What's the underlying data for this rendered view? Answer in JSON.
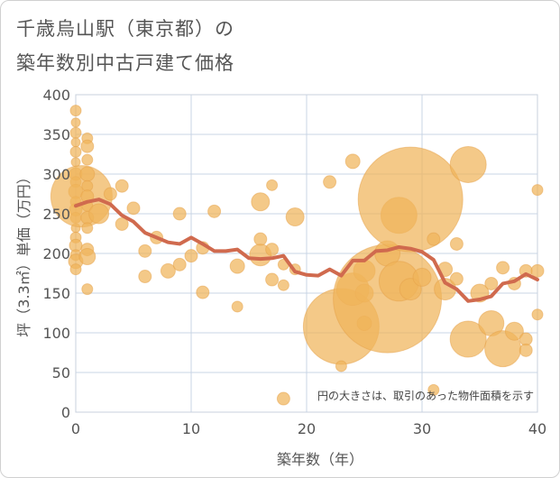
{
  "chart_data": {
    "type": "scatter",
    "title_lines": [
      "千歳烏山駅（東京都）の",
      "築年数別中古戸建て価格"
    ],
    "xlabel": "築年数（年）",
    "ylabel": "坪（3.3㎡）単価（万円）",
    "xlim": [
      0,
      40
    ],
    "ylim": [
      0,
      400
    ],
    "x_ticks": [
      0,
      10,
      20,
      30,
      40
    ],
    "y_ticks": [
      0,
      50,
      100,
      150,
      200,
      250,
      300,
      350,
      400
    ],
    "grid": true,
    "note": "円の大きさは、取引のあった物件面積を示す",
    "bubble_color": "#f0b45a",
    "line_color": "#d06a4e",
    "bubbles": [
      {
        "x": 0,
        "y": 380,
        "r": 6
      },
      {
        "x": 0,
        "y": 365,
        "r": 5
      },
      {
        "x": 0,
        "y": 352,
        "r": 6
      },
      {
        "x": 0,
        "y": 340,
        "r": 5
      },
      {
        "x": 0,
        "y": 328,
        "r": 6
      },
      {
        "x": 0,
        "y": 315,
        "r": 5
      },
      {
        "x": 0,
        "y": 300,
        "r": 7
      },
      {
        "x": 0,
        "y": 290,
        "r": 6
      },
      {
        "x": 0,
        "y": 278,
        "r": 8
      },
      {
        "x": 0,
        "y": 265,
        "r": 6
      },
      {
        "x": 0,
        "y": 255,
        "r": 7
      },
      {
        "x": 0,
        "y": 245,
        "r": 6
      },
      {
        "x": 0,
        "y": 232,
        "r": 5
      },
      {
        "x": 0,
        "y": 220,
        "r": 6
      },
      {
        "x": 0,
        "y": 210,
        "r": 7
      },
      {
        "x": 0,
        "y": 198,
        "r": 6
      },
      {
        "x": 0,
        "y": 190,
        "r": 8
      },
      {
        "x": 0,
        "y": 180,
        "r": 6
      },
      {
        "x": 0.5,
        "y": 272,
        "r": 34
      },
      {
        "x": 1,
        "y": 345,
        "r": 6
      },
      {
        "x": 1,
        "y": 335,
        "r": 7
      },
      {
        "x": 1,
        "y": 318,
        "r": 6
      },
      {
        "x": 1,
        "y": 300,
        "r": 8
      },
      {
        "x": 1,
        "y": 285,
        "r": 6
      },
      {
        "x": 1,
        "y": 272,
        "r": 7
      },
      {
        "x": 1,
        "y": 260,
        "r": 6
      },
      {
        "x": 1,
        "y": 245,
        "r": 7
      },
      {
        "x": 1,
        "y": 232,
        "r": 6
      },
      {
        "x": 1,
        "y": 205,
        "r": 7
      },
      {
        "x": 1,
        "y": 196,
        "r": 9
      },
      {
        "x": 1,
        "y": 155,
        "r": 6
      },
      {
        "x": 2,
        "y": 250,
        "r": 11
      },
      {
        "x": 3,
        "y": 275,
        "r": 7
      },
      {
        "x": 4,
        "y": 285,
        "r": 7
      },
      {
        "x": 4,
        "y": 237,
        "r": 7
      },
      {
        "x": 5,
        "y": 257,
        "r": 7
      },
      {
        "x": 6,
        "y": 203,
        "r": 7
      },
      {
        "x": 6,
        "y": 171,
        "r": 7
      },
      {
        "x": 7,
        "y": 220,
        "r": 7
      },
      {
        "x": 8,
        "y": 178,
        "r": 8
      },
      {
        "x": 9,
        "y": 250,
        "r": 7
      },
      {
        "x": 9,
        "y": 186,
        "r": 7
      },
      {
        "x": 10,
        "y": 197,
        "r": 7
      },
      {
        "x": 11,
        "y": 207,
        "r": 7
      },
      {
        "x": 11,
        "y": 151,
        "r": 7
      },
      {
        "x": 12,
        "y": 253,
        "r": 7
      },
      {
        "x": 14,
        "y": 184,
        "r": 8
      },
      {
        "x": 14,
        "y": 133,
        "r": 6
      },
      {
        "x": 16,
        "y": 265,
        "r": 10
      },
      {
        "x": 16,
        "y": 218,
        "r": 7
      },
      {
        "x": 16,
        "y": 198,
        "r": 12
      },
      {
        "x": 17,
        "y": 286,
        "r": 6
      },
      {
        "x": 17,
        "y": 205,
        "r": 7
      },
      {
        "x": 17,
        "y": 167,
        "r": 7
      },
      {
        "x": 18,
        "y": 160,
        "r": 6
      },
      {
        "x": 18,
        "y": 186,
        "r": 6
      },
      {
        "x": 18,
        "y": 17,
        "r": 7
      },
      {
        "x": 19,
        "y": 246,
        "r": 10
      },
      {
        "x": 19,
        "y": 180,
        "r": 6
      },
      {
        "x": 22,
        "y": 290,
        "r": 7
      },
      {
        "x": 23,
        "y": 108,
        "r": 42
      },
      {
        "x": 23,
        "y": 58,
        "r": 6
      },
      {
        "x": 24,
        "y": 316,
        "r": 8
      },
      {
        "x": 24,
        "y": 155,
        "r": 18
      },
      {
        "x": 25,
        "y": 178,
        "r": 12
      },
      {
        "x": 25,
        "y": 150,
        "r": 10
      },
      {
        "x": 25,
        "y": 112,
        "r": 8
      },
      {
        "x": 27,
        "y": 143,
        "r": 60
      },
      {
        "x": 27,
        "y": 200,
        "r": 14
      },
      {
        "x": 28,
        "y": 248,
        "r": 20
      },
      {
        "x": 28,
        "y": 165,
        "r": 22
      },
      {
        "x": 29,
        "y": 268,
        "r": 58
      },
      {
        "x": 29,
        "y": 155,
        "r": 12
      },
      {
        "x": 30,
        "y": 170,
        "r": 10
      },
      {
        "x": 31,
        "y": 28,
        "r": 6
      },
      {
        "x": 31,
        "y": 218,
        "r": 7
      },
      {
        "x": 32,
        "y": 180,
        "r": 8
      },
      {
        "x": 32,
        "y": 155,
        "r": 12
      },
      {
        "x": 33,
        "y": 212,
        "r": 7
      },
      {
        "x": 33,
        "y": 168,
        "r": 7
      },
      {
        "x": 34,
        "y": 312,
        "r": 20
      },
      {
        "x": 34,
        "y": 92,
        "r": 20
      },
      {
        "x": 35,
        "y": 150,
        "r": 10
      },
      {
        "x": 36,
        "y": 112,
        "r": 14
      },
      {
        "x": 36,
        "y": 162,
        "r": 7
      },
      {
        "x": 37,
        "y": 80,
        "r": 20
      },
      {
        "x": 37,
        "y": 182,
        "r": 7
      },
      {
        "x": 38,
        "y": 162,
        "r": 7
      },
      {
        "x": 38,
        "y": 102,
        "r": 10
      },
      {
        "x": 39,
        "y": 92,
        "r": 7
      },
      {
        "x": 39,
        "y": 78,
        "r": 7
      },
      {
        "x": 39,
        "y": 178,
        "r": 7
      },
      {
        "x": 40,
        "y": 280,
        "r": 6
      },
      {
        "x": 40,
        "y": 178,
        "r": 7
      },
      {
        "x": 40,
        "y": 123,
        "r": 6
      }
    ],
    "trend": {
      "x": [
        0,
        1,
        2,
        3,
        4,
        5,
        6,
        7,
        8,
        9,
        10,
        11,
        12,
        13,
        14,
        15,
        16,
        17,
        18,
        19,
        20,
        21,
        22,
        23,
        24,
        25,
        26,
        27,
        28,
        29,
        30,
        31,
        32,
        33,
        34,
        35,
        36,
        37,
        38,
        39,
        40
      ],
      "y": [
        260,
        265,
        268,
        262,
        248,
        240,
        226,
        220,
        214,
        212,
        220,
        212,
        203,
        203,
        205,
        194,
        193,
        194,
        197,
        177,
        173,
        172,
        180,
        172,
        191,
        191,
        203,
        204,
        208,
        206,
        202,
        192,
        163,
        155,
        140,
        142,
        146,
        162,
        165,
        174,
        167
      ]
    }
  }
}
